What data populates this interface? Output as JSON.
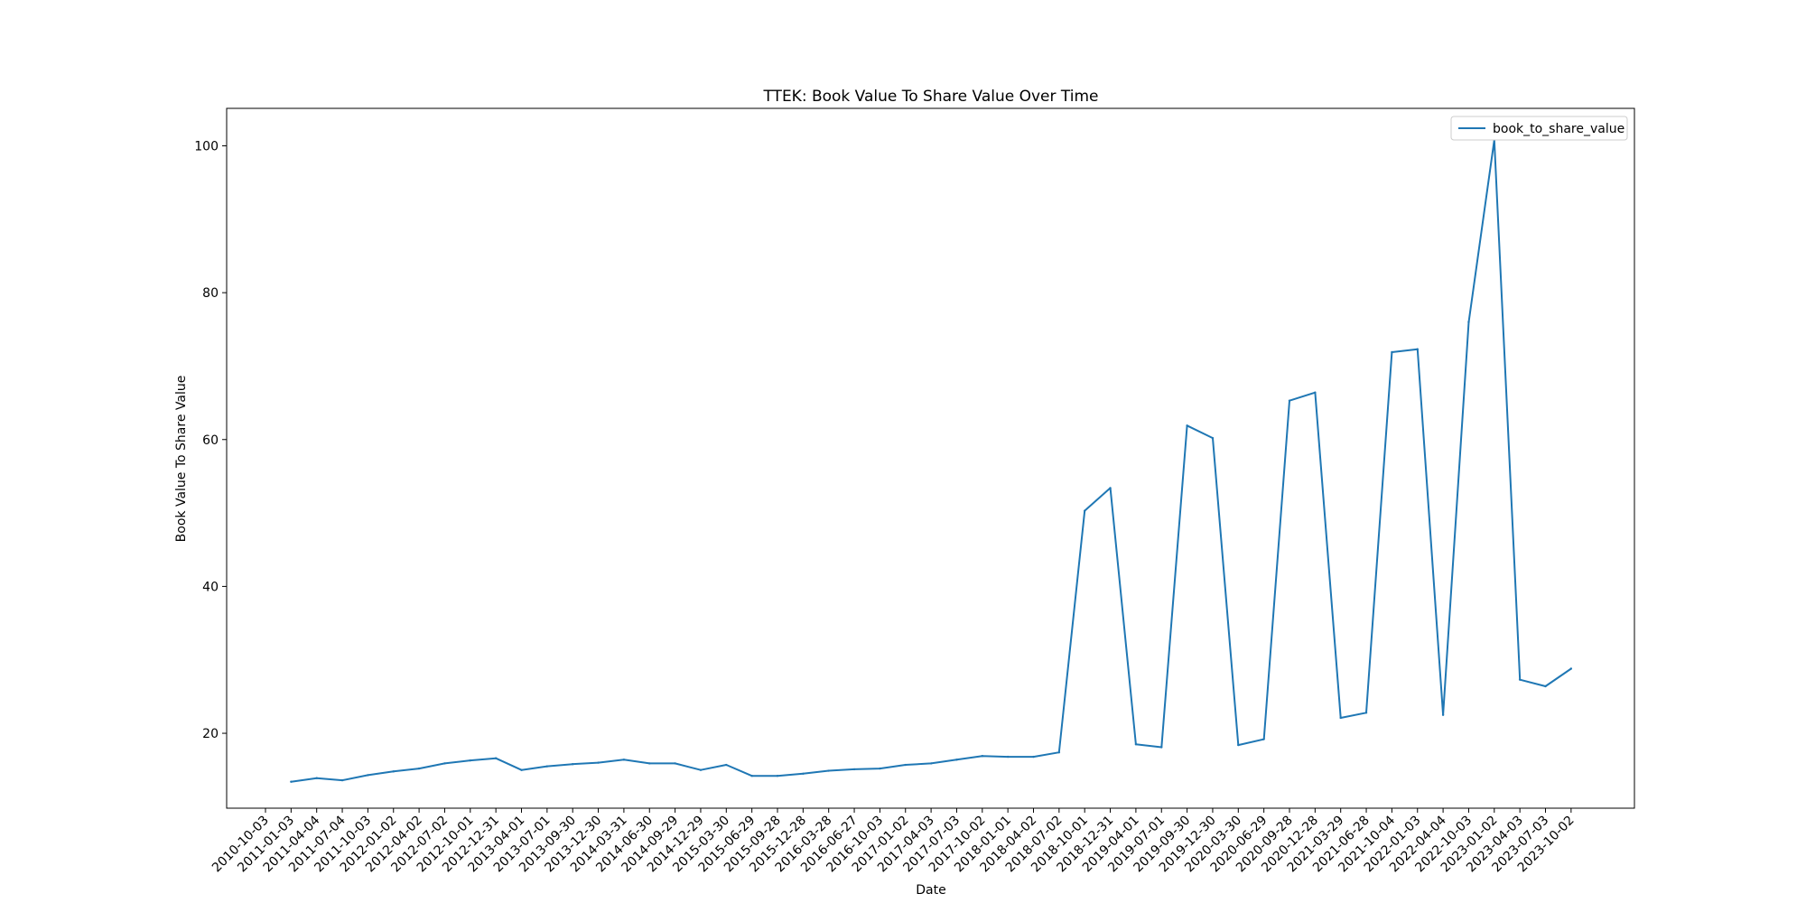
{
  "chart_data": {
    "type": "line",
    "title": "TTEK: Book Value To Share Value Over Time",
    "xlabel": "Date",
    "ylabel": "Book Value To Share Value",
    "x": [
      "2010-10-03",
      "2011-01-03",
      "2011-04-04",
      "2011-07-04",
      "2011-10-03",
      "2012-01-02",
      "2012-04-02",
      "2012-07-02",
      "2012-10-01",
      "2012-12-31",
      "2013-04-01",
      "2013-07-01",
      "2013-09-30",
      "2013-12-30",
      "2014-03-31",
      "2014-06-30",
      "2014-09-29",
      "2014-12-29",
      "2015-03-30",
      "2015-06-29",
      "2015-09-28",
      "2015-12-28",
      "2016-03-28",
      "2016-06-27",
      "2016-10-03",
      "2017-01-02",
      "2017-04-03",
      "2017-07-03",
      "2017-10-02",
      "2018-01-01",
      "2018-04-02",
      "2018-07-02",
      "2018-10-01",
      "2018-12-31",
      "2019-04-01",
      "2019-07-01",
      "2019-09-30",
      "2019-12-30",
      "2020-03-30",
      "2020-06-29",
      "2020-09-28",
      "2020-12-28",
      "2021-03-29",
      "2021-06-28",
      "2021-10-04",
      "2022-01-03",
      "2022-04-04",
      "2022-10-03",
      "2023-01-02",
      "2023-04-03",
      "2023-07-03",
      "2023-10-02"
    ],
    "series": [
      {
        "name": "book_to_share_value",
        "color": "#1f77b4",
        "values": [
          null,
          13.4,
          13.9,
          13.6,
          14.3,
          14.8,
          15.2,
          15.9,
          16.3,
          16.6,
          15.0,
          15.5,
          15.8,
          16.0,
          16.4,
          15.9,
          15.9,
          15.0,
          15.7,
          14.2,
          14.2,
          14.5,
          14.9,
          15.1,
          15.2,
          15.7,
          15.9,
          16.4,
          16.9,
          16.8,
          16.8,
          17.4,
          50.3,
          53.4,
          18.5,
          18.1,
          61.9,
          60.2,
          18.4,
          19.2,
          65.3,
          66.4,
          22.1,
          22.8,
          71.9,
          72.3,
          22.5,
          76.0,
          100.8,
          27.3,
          26.4,
          28.8
        ]
      }
    ],
    "yticks": [
      20,
      40,
      60,
      80,
      100
    ],
    "ylim": [
      9.8,
      105.1
    ],
    "grid": false,
    "legend_position": "top-right"
  }
}
